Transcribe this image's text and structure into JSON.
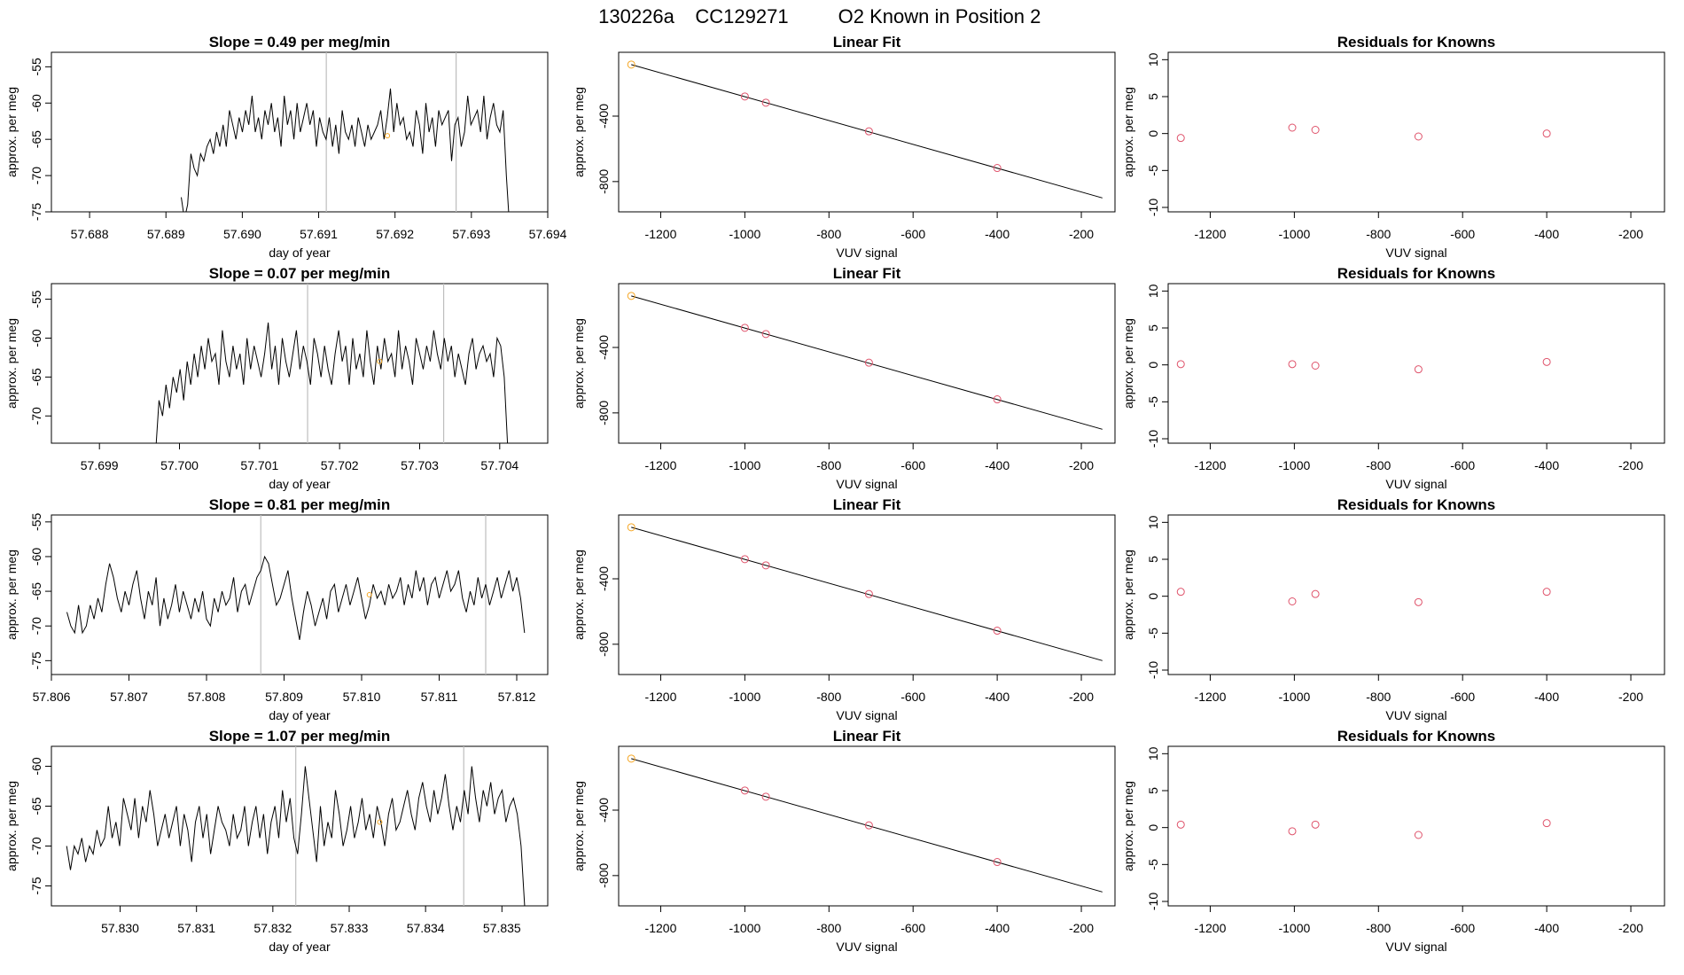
{
  "figure": {
    "title_parts": [
      "130226a",
      "CC129271",
      "O2 Known in Position  2"
    ]
  },
  "colors": {
    "line": "#000000",
    "vline": "#bebebe",
    "point_known": "#df536b",
    "point_highlight": "#f5a623"
  },
  "chart_data": [
    {
      "panel": "row1-time-series",
      "type": "line",
      "title": "Slope =  0.49  per meg/min",
      "xlabel": "day of year",
      "ylabel": "approx. per meg",
      "xlim": [
        57.6875,
        57.694
      ],
      "ylim": [
        -75,
        -53
      ],
      "xticks": [
        "57.688",
        "57.689",
        "57.690",
        "57.691",
        "57.692",
        "57.693",
        "57.694"
      ],
      "yticks": [
        "-55",
        "-60",
        "-65",
        "-70",
        "-75"
      ],
      "vlines": [
        57.6911,
        57.6928
      ],
      "marker": {
        "x": 57.6919,
        "y": -64.5
      },
      "series": [
        {
          "x_start": 57.6892,
          "x_end": 57.6935,
          "values": [
            -73,
            -76,
            -74,
            -67,
            -69,
            -70,
            -67,
            -68,
            -66,
            -65,
            -67,
            -64,
            -66,
            -63,
            -66,
            -61,
            -63,
            -65,
            -62,
            -64,
            -61,
            -63,
            -59,
            -64,
            -62,
            -65,
            -61,
            -63,
            -60,
            -64,
            -62,
            -66,
            -59,
            -63,
            -61,
            -65,
            -60,
            -64,
            -62,
            -60,
            -63,
            -61,
            -66,
            -62,
            -64,
            -65,
            -62,
            -66,
            -63,
            -67,
            -61,
            -64,
            -65,
            -63,
            -66,
            -62,
            -64,
            -66,
            -63,
            -65,
            -64,
            -63,
            -61,
            -65,
            -62,
            -58,
            -64,
            -60,
            -63,
            -62,
            -65,
            -64,
            -66,
            -61,
            -63,
            -67,
            -60,
            -64,
            -62,
            -66,
            -61,
            -63,
            -62,
            -61,
            -68,
            -63,
            -62,
            -66,
            -64,
            -59,
            -63,
            -62,
            -61,
            -64,
            -59,
            -65,
            -62,
            -60,
            -63,
            -64,
            -61,
            -70,
            -77
          ]
        }
      ]
    },
    {
      "panel": "row1-linear-fit",
      "type": "scatter",
      "title": "Linear Fit",
      "xlabel": "VUV signal",
      "ylabel": "approx. per meg",
      "xlim": [
        -1300,
        -120
      ],
      "ylim": [
        -985,
        -10
      ],
      "xticks": [
        "-1200",
        "-1000",
        "-800",
        "-600",
        "-400",
        "-200"
      ],
      "yticks": [
        "-400",
        "-800"
      ],
      "fit_line": {
        "x": [
          -1270,
          -150
        ],
        "y": [
          -85,
          -900
        ]
      },
      "points": [
        {
          "x": -1270,
          "y": -85,
          "highlight": true
        },
        {
          "x": -1000,
          "y": -280
        },
        {
          "x": -950,
          "y": -318
        },
        {
          "x": -705,
          "y": -493
        },
        {
          "x": -400,
          "y": -717
        }
      ]
    },
    {
      "panel": "row1-residuals",
      "type": "scatter",
      "title": "Residuals for Knowns",
      "xlabel": "VUV signal",
      "ylabel": "approx. per meg",
      "xlim": [
        -1300,
        -120
      ],
      "ylim": [
        -10.6,
        11
      ],
      "xticks": [
        "-1200",
        "-1000",
        "-800",
        "-600",
        "-400",
        "-200"
      ],
      "yticks": [
        "10",
        "5",
        "0",
        "-5",
        "-10"
      ],
      "points": [
        {
          "x": -1270,
          "y": -0.6
        },
        {
          "x": -1005,
          "y": 0.8
        },
        {
          "x": -950,
          "y": 0.5
        },
        {
          "x": -705,
          "y": -0.4
        },
        {
          "x": -400,
          "y": 0.0
        }
      ]
    },
    {
      "panel": "row2-time-series",
      "type": "line",
      "title": "Slope =  0.07  per meg/min",
      "xlabel": "day of year",
      "ylabel": "approx. per meg",
      "xlim": [
        57.6984,
        57.7046
      ],
      "ylim": [
        -73.5,
        -53
      ],
      "xticks": [
        "57.699",
        "57.700",
        "57.701",
        "57.702",
        "57.703",
        "57.704"
      ],
      "yticks": [
        "-55",
        "-60",
        "-65",
        "-70"
      ],
      "vlines": [
        57.7016,
        57.7033
      ],
      "marker": {
        "x": 57.7025,
        "y": -63
      },
      "series": [
        {
          "x_start": 57.6997,
          "x_end": 57.7041,
          "values": [
            -75,
            -68,
            -70,
            -66,
            -69,
            -65,
            -67,
            -64,
            -68,
            -63,
            -66,
            -62,
            -65,
            -61,
            -64,
            -60,
            -63,
            -62,
            -66,
            -59,
            -63,
            -65,
            -61,
            -64,
            -62,
            -66,
            -60,
            -64,
            -61,
            -63,
            -65,
            -62,
            -58,
            -64,
            -61,
            -66,
            -60,
            -63,
            -65,
            -62,
            -59,
            -64,
            -61,
            -63,
            -66,
            -60,
            -62,
            -65,
            -61,
            -64,
            -66,
            -62,
            -59,
            -63,
            -61,
            -66,
            -60,
            -64,
            -62,
            -65,
            -59,
            -63,
            -66,
            -61,
            -64,
            -60,
            -63,
            -62,
            -65,
            -59,
            -64,
            -61,
            -63,
            -66,
            -60,
            -62,
            -64,
            -61,
            -63,
            -59,
            -62,
            -64,
            -60,
            -63,
            -61,
            -65,
            -62,
            -64,
            -66,
            -62,
            -60,
            -64,
            -62,
            -61,
            -63,
            -62,
            -65,
            -60,
            -61,
            -65,
            -74
          ]
        }
      ]
    },
    {
      "panel": "row2-linear-fit",
      "type": "scatter",
      "title": "Linear Fit",
      "xlabel": "VUV signal",
      "ylabel": "approx. per meg",
      "xlim": [
        -1300,
        -120
      ],
      "ylim": [
        -985,
        -10
      ],
      "xticks": [
        "-1200",
        "-1000",
        "-800",
        "-600",
        "-400",
        "-200"
      ],
      "yticks": [
        "-400",
        "-800"
      ],
      "fit_line": {
        "x": [
          -1270,
          -150
        ],
        "y": [
          -85,
          -900
        ]
      },
      "points": [
        {
          "x": -1270,
          "y": -85,
          "highlight": true
        },
        {
          "x": -1000,
          "y": -280
        },
        {
          "x": -950,
          "y": -318
        },
        {
          "x": -705,
          "y": -493
        },
        {
          "x": -400,
          "y": -717
        }
      ]
    },
    {
      "panel": "row2-residuals",
      "type": "scatter",
      "title": "Residuals for Knowns",
      "xlabel": "VUV signal",
      "ylabel": "approx. per meg",
      "xlim": [
        -1300,
        -120
      ],
      "ylim": [
        -10.6,
        11
      ],
      "xticks": [
        "-1200",
        "-1000",
        "-800",
        "-600",
        "-400",
        "-200"
      ],
      "yticks": [
        "10",
        "5",
        "0",
        "-5",
        "-10"
      ],
      "points": [
        {
          "x": -1270,
          "y": 0.1
        },
        {
          "x": -1005,
          "y": 0.1
        },
        {
          "x": -950,
          "y": -0.1
        },
        {
          "x": -705,
          "y": -0.6
        },
        {
          "x": -400,
          "y": 0.4
        }
      ]
    },
    {
      "panel": "row3-time-series",
      "type": "line",
      "title": "Slope =  0.81  per meg/min",
      "xlabel": "day of year",
      "ylabel": "approx. per meg",
      "xlim": [
        57.806,
        57.8124
      ],
      "ylim": [
        -77,
        -54
      ],
      "xticks": [
        "57.806",
        "57.807",
        "57.808",
        "57.809",
        "57.810",
        "57.811",
        "57.812"
      ],
      "yticks": [
        "-55",
        "-60",
        "-65",
        "-70",
        "-75"
      ],
      "vlines": [
        57.8087,
        57.8116
      ],
      "marker": {
        "x": 57.8101,
        "y": -65.5
      },
      "series": [
        {
          "x_start": 57.8062,
          "x_end": 57.8121,
          "values": [
            -68,
            -70,
            -71,
            -67,
            -71,
            -70,
            -67,
            -69,
            -66,
            -68,
            -64,
            -61,
            -63,
            -66,
            -68,
            -65,
            -67,
            -64,
            -62,
            -66,
            -69,
            -65,
            -67,
            -63,
            -70,
            -66,
            -69,
            -67,
            -64,
            -68,
            -65,
            -67,
            -69,
            -66,
            -68,
            -65,
            -69,
            -70,
            -66,
            -68,
            -65,
            -67,
            -66,
            -63,
            -68,
            -65,
            -64,
            -67,
            -65,
            -63,
            -62,
            -60,
            -61,
            -64,
            -67,
            -66,
            -64,
            -62,
            -66,
            -69,
            -72,
            -68,
            -65,
            -67,
            -70,
            -68,
            -66,
            -69,
            -65,
            -64,
            -68,
            -66,
            -64,
            -67,
            -65,
            -63,
            -66,
            -69,
            -67,
            -64,
            -66,
            -65,
            -67,
            -64,
            -66,
            -65,
            -63,
            -67,
            -64,
            -66,
            -62,
            -65,
            -63,
            -67,
            -64,
            -63,
            -66,
            -64,
            -62,
            -65,
            -64,
            -62,
            -66,
            -68,
            -65,
            -67,
            -63,
            -66,
            -64,
            -67,
            -65,
            -63,
            -66,
            -64,
            -62,
            -65,
            -63,
            -66,
            -71
          ]
        }
      ]
    },
    {
      "panel": "row3-linear-fit",
      "type": "scatter",
      "title": "Linear Fit",
      "xlabel": "VUV signal",
      "ylabel": "approx. per meg",
      "xlim": [
        -1300,
        -120
      ],
      "ylim": [
        -985,
        -10
      ],
      "xticks": [
        "-1200",
        "-1000",
        "-800",
        "-600",
        "-400",
        "-200"
      ],
      "yticks": [
        "-400",
        "-800"
      ],
      "fit_line": {
        "x": [
          -1270,
          -150
        ],
        "y": [
          -85,
          -900
        ]
      },
      "points": [
        {
          "x": -1270,
          "y": -85,
          "highlight": true
        },
        {
          "x": -1000,
          "y": -280
        },
        {
          "x": -950,
          "y": -318
        },
        {
          "x": -705,
          "y": -493
        },
        {
          "x": -400,
          "y": -717
        }
      ]
    },
    {
      "panel": "row3-residuals",
      "type": "scatter",
      "title": "Residuals for Knowns",
      "xlabel": "VUV signal",
      "ylabel": "approx. per meg",
      "xlim": [
        -1300,
        -120
      ],
      "ylim": [
        -10.6,
        11
      ],
      "xticks": [
        "-1200",
        "-1000",
        "-800",
        "-600",
        "-400",
        "-200"
      ],
      "yticks": [
        "10",
        "5",
        "0",
        "-5",
        "-10"
      ],
      "points": [
        {
          "x": -1270,
          "y": 0.6
        },
        {
          "x": -1005,
          "y": -0.7
        },
        {
          "x": -950,
          "y": 0.3
        },
        {
          "x": -705,
          "y": -0.8
        },
        {
          "x": -400,
          "y": 0.6
        }
      ]
    },
    {
      "panel": "row4-time-series",
      "type": "line",
      "title": "Slope =  1.07  per meg/min",
      "xlabel": "day of year",
      "ylabel": "approx. per meg",
      "xlim": [
        57.8291,
        57.8356
      ],
      "ylim": [
        -77.5,
        -57.5
      ],
      "xticks": [
        "57.830",
        "57.831",
        "57.832",
        "57.833",
        "57.834",
        "57.835"
      ],
      "yticks": [
        "-60",
        "-65",
        "-70",
        "-75"
      ],
      "vlines": [
        57.8323,
        57.8345
      ],
      "marker": {
        "x": 57.8334,
        "y": -67
      },
      "series": [
        {
          "x_start": 57.8293,
          "x_end": 57.8353,
          "values": [
            -70,
            -73,
            -70,
            -71,
            -69,
            -72,
            -70,
            -71,
            -68,
            -70,
            -69,
            -65,
            -69,
            -67,
            -70,
            -64,
            -66,
            -68,
            -64,
            -69,
            -65,
            -67,
            -63,
            -66,
            -70,
            -68,
            -66,
            -69,
            -67,
            -65,
            -70,
            -66,
            -68,
            -72,
            -67,
            -65,
            -69,
            -66,
            -71,
            -68,
            -65,
            -67,
            -68,
            -70,
            -66,
            -69,
            -68,
            -65,
            -70,
            -67,
            -65,
            -69,
            -66,
            -71,
            -67,
            -65,
            -69,
            -63,
            -67,
            -64,
            -69,
            -71,
            -66,
            -60,
            -64,
            -68,
            -72,
            -65,
            -70,
            -67,
            -69,
            -63,
            -66,
            -70,
            -68,
            -65,
            -69,
            -67,
            -64,
            -68,
            -66,
            -69,
            -65,
            -67,
            -70,
            -66,
            -64,
            -68,
            -67,
            -65,
            -63,
            -66,
            -68,
            -64,
            -62,
            -65,
            -67,
            -63,
            -66,
            -64,
            -61,
            -65,
            -68,
            -65,
            -67,
            -63,
            -66,
            -60,
            -64,
            -67,
            -63,
            -65,
            -62,
            -66,
            -64,
            -63,
            -67,
            -65,
            -64,
            -66,
            -70,
            -78
          ]
        }
      ]
    },
    {
      "panel": "row4-linear-fit",
      "type": "scatter",
      "title": "Linear Fit",
      "xlabel": "VUV signal",
      "ylabel": "approx. per meg",
      "xlim": [
        -1300,
        -120
      ],
      "ylim": [
        -985,
        -10
      ],
      "xticks": [
        "-1200",
        "-1000",
        "-800",
        "-600",
        "-400",
        "-200"
      ],
      "yticks": [
        "-400",
        "-800"
      ],
      "fit_line": {
        "x": [
          -1270,
          -150
        ],
        "y": [
          -85,
          -900
        ]
      },
      "points": [
        {
          "x": -1270,
          "y": -85,
          "highlight": true
        },
        {
          "x": -1000,
          "y": -280
        },
        {
          "x": -950,
          "y": -318
        },
        {
          "x": -705,
          "y": -493
        },
        {
          "x": -400,
          "y": -717
        }
      ]
    },
    {
      "panel": "row4-residuals",
      "type": "scatter",
      "title": "Residuals for Knowns",
      "xlabel": "VUV signal",
      "ylabel": "approx. per meg",
      "xlim": [
        -1300,
        -120
      ],
      "ylim": [
        -10.6,
        11
      ],
      "xticks": [
        "-1200",
        "-1000",
        "-800",
        "-600",
        "-400",
        "-200"
      ],
      "yticks": [
        "10",
        "5",
        "0",
        "-5",
        "-10"
      ],
      "points": [
        {
          "x": -1270,
          "y": 0.4
        },
        {
          "x": -1005,
          "y": -0.5
        },
        {
          "x": -950,
          "y": 0.4
        },
        {
          "x": -705,
          "y": -1.0
        },
        {
          "x": -400,
          "y": 0.6
        }
      ]
    }
  ]
}
